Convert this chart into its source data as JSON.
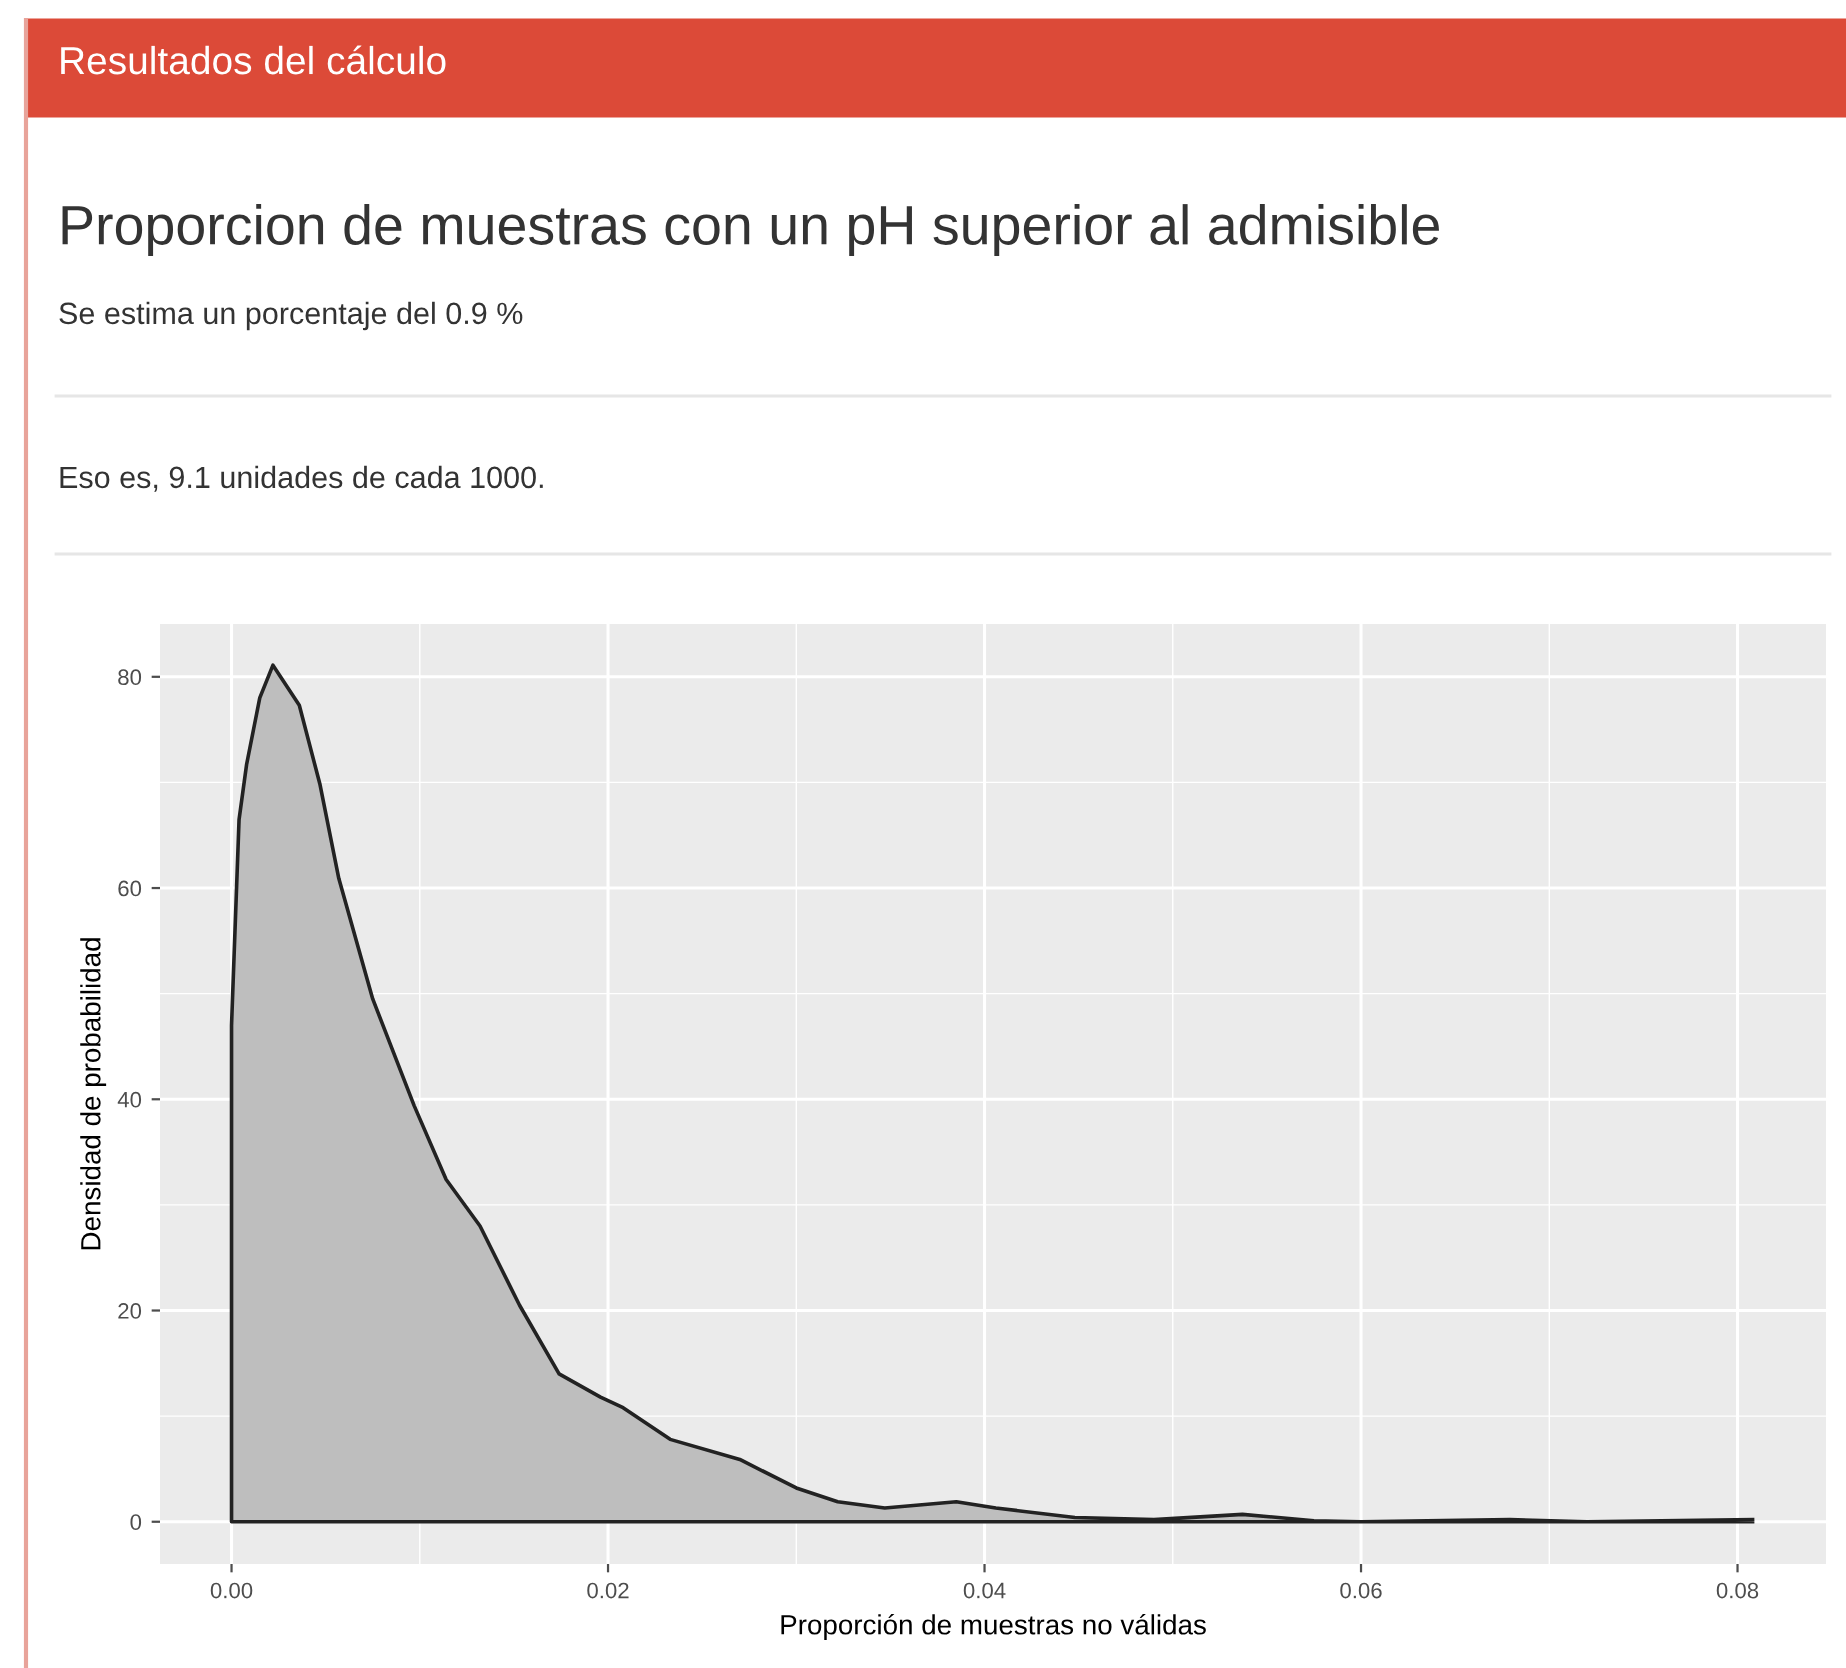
{
  "chart_data": {
    "type": "area",
    "title": "Proporcion de muestras con un pH superior al admisible",
    "subtitle": "Se estima un porcentaje del 0.9 %",
    "annotations": [
      "Resultados del cálculo",
      "Eso es, 9.1 unidades de cada 1000."
    ],
    "xlabel": "Proporción de muestras no válidas",
    "ylabel": "Densidad de probabilidad",
    "series": [
      {
        "color": "#bebebe",
        "x": [
          0.0,
          0.0004,
          0.0008,
          0.0015,
          0.0022,
          0.0036,
          0.0047,
          0.0057,
          0.0075,
          0.0097,
          0.0114,
          0.0132,
          0.0153,
          0.0174,
          0.0196,
          0.0208,
          0.0233,
          0.027,
          0.03,
          0.0322,
          0.0347,
          0.0385,
          0.0406,
          0.0448,
          0.049,
          0.0537,
          0.0575,
          0.06,
          0.0679,
          0.072,
          0.0808
        ],
        "values": [
          47,
          66.5,
          71.7,
          78,
          81.1,
          77.3,
          69.8,
          60.9,
          49.5,
          39.4,
          32.4,
          28,
          20.5,
          14,
          11.8,
          10.8,
          7.8,
          5.9,
          3.2,
          1.9,
          1.3,
          1.9,
          1.3,
          0.4,
          0.2,
          0.7,
          0.1,
          0.0,
          0.2,
          0.0,
          0.2
        ]
      }
    ],
    "xlim": [
      -0.0038,
      0.0847
    ],
    "ylim": [
      -4,
      85
    ],
    "xticks": [
      {
        "value": 0,
        "label": "0.00"
      },
      {
        "value": 0.02,
        "label": "0.02"
      },
      {
        "value": 0.04,
        "label": "0.04"
      },
      {
        "value": 0.06,
        "label": "0.06"
      },
      {
        "value": 0.08,
        "label": "0.08"
      }
    ],
    "yticks": [
      0,
      20,
      40,
      60,
      80
    ],
    "grid": true
  }
}
